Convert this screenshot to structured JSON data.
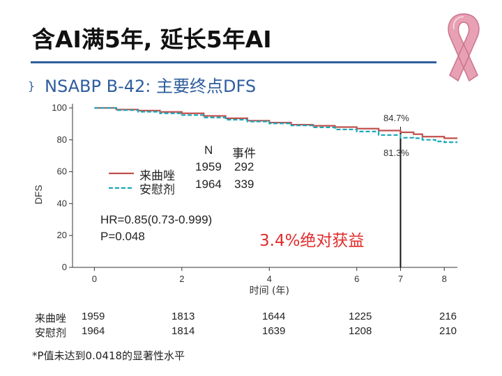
{
  "slide": {
    "title": "含AI满5年, 延长5年AI",
    "subtitle_bullet": "}",
    "subtitle": "NSABP B-42: 主要终点DFS",
    "footnote": "*P值未达到0.0418的显著性水平"
  },
  "colors": {
    "title_rule": "#2e5d9e",
    "letrozole": "#c0504d",
    "placebo": "#1aa8b8",
    "benefit_text": "#e32b2b",
    "ribbon": "#e8a0b4"
  },
  "chart_data": {
    "type": "line",
    "xlabel": "时间 (年)",
    "ylabel": "DFS",
    "xlim": [
      -0.5,
      8.3
    ],
    "ylim": [
      0,
      100
    ],
    "x_ticks": [
      "0",
      "2",
      "4",
      "6",
      "7",
      "8"
    ],
    "x_tick_values": [
      0,
      2,
      4,
      6,
      7,
      8
    ],
    "y_ticks": [
      "0",
      "20",
      "40",
      "60",
      "80",
      "100"
    ],
    "y_tick_values": [
      0,
      20,
      40,
      60,
      80,
      100
    ],
    "series": [
      {
        "name": "来曲唑",
        "color": "#c0504d",
        "style": "solid",
        "x": [
          0,
          0.5,
          1,
          1.5,
          2,
          2.5,
          3,
          3.5,
          4,
          4.5,
          5,
          5.5,
          6,
          6.5,
          7,
          7.3,
          7.5,
          7.8,
          8,
          8.3
        ],
        "y": [
          100,
          99,
          98.3,
          97.5,
          96.6,
          95,
          93.5,
          92,
          90.8,
          89.5,
          88.8,
          88,
          87,
          85.8,
          84.7,
          83.5,
          82,
          82,
          81,
          81
        ]
      },
      {
        "name": "安慰剂",
        "color": "#1aa8b8",
        "style": "dashed",
        "x": [
          0,
          0.5,
          1,
          1.5,
          2,
          2.5,
          3,
          3.5,
          4,
          4.5,
          5,
          5.5,
          6,
          6.5,
          7,
          7.3,
          7.5,
          7.8,
          8,
          8.3
        ],
        "y": [
          100,
          98.6,
          97.6,
          96.6,
          95.5,
          94,
          92.6,
          91.5,
          90.3,
          89,
          87.8,
          86.5,
          85.2,
          83,
          81.3,
          81,
          80,
          79,
          78.5,
          78.5
        ]
      }
    ],
    "annotations": {
      "letrozole_label": "84.7%",
      "placebo_label": "81.3%",
      "marker_x": 7,
      "table_header_n": "N",
      "table_header_events": "事件",
      "row1": {
        "n": "1959",
        "events": "292"
      },
      "row2": {
        "n": "1964",
        "events": "339"
      },
      "hr": "HR=0.85(0.73-0.999)",
      "p": "P=0.048",
      "benefit": "3.4%绝对获益"
    },
    "legend": [
      "来曲唑",
      "安慰剂"
    ],
    "numbers_at_risk": [
      {
        "label": "来曲唑",
        "values": [
          "1959",
          "1813",
          "1644",
          "1225",
          "216"
        ]
      },
      {
        "label": "安慰剂",
        "values": [
          "1964",
          "1814",
          "1639",
          "1208",
          "210"
        ]
      }
    ]
  }
}
